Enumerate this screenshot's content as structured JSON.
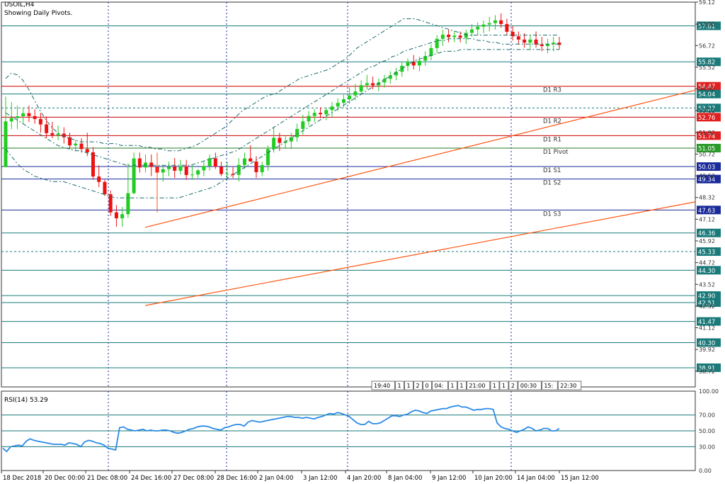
{
  "header": {
    "symbol": "USOIL,H4",
    "subtitle": "Showing Daily Pivots."
  },
  "colors": {
    "bull": "#22cc22",
    "bear": "#ee1111",
    "grid": "#1a2a9a",
    "teal": "#1a7a7a",
    "pivot_red": "#cc0000",
    "channel": "#ff5511",
    "rsi": "#2a8ae6",
    "bb": "#1a6a6a"
  },
  "chart_data": [
    {
      "type": "candlestick",
      "title": "USOIL,H4",
      "subtitle": "Showing Daily Pivots.",
      "ylim": [
        37.85,
        59.12
      ],
      "price_scale_ticks": [
        59.12,
        57.9,
        56.72,
        55.52,
        54.32,
        53.12,
        51.92,
        50.72,
        49.52,
        48.32,
        47.12,
        45.92,
        44.72,
        43.52,
        42.32,
        41.12,
        39.92,
        38.72
      ],
      "time_labels": [
        "18 Dec 2018",
        "20 Dec 00:00",
        "21 Dec 08:00",
        "24 Dec 16:00",
        "27 Dec 08:00",
        "28 Dec 16:00",
        "2 Jan 04:00",
        "3 Jan 12:00",
        "4 Jan 20:00",
        "8 Jan 04:00",
        "9 Jan 12:00",
        "10 Jan 20:00",
        "14 Jan 04:00",
        "15 Jan 12:00"
      ],
      "horizontal_levels": [
        {
          "value": 57.81,
          "label": "57.81",
          "kind": "level"
        },
        {
          "value": 55.82,
          "label": "55.82",
          "kind": "level"
        },
        {
          "value": 54.47,
          "label": "54.47",
          "kind": "pivot_red",
          "name": "D1 R3"
        },
        {
          "value": 54.04,
          "label": "54.04",
          "kind": "level"
        },
        {
          "value": 53.27,
          "label": "53.27",
          "kind": "dashed"
        },
        {
          "value": 52.76,
          "label": "52.76",
          "kind": "pivot_red",
          "name": "D1 R2"
        },
        {
          "value": 51.74,
          "label": "51.74",
          "kind": "pivot_red",
          "name": "D1 R1"
        },
        {
          "value": 51.05,
          "label": "51.05",
          "kind": "pivot_green",
          "name": "D1 Pivot"
        },
        {
          "value": 50.03,
          "label": "50.03",
          "kind": "pivot_blue",
          "name": "D1 S1"
        },
        {
          "value": 49.34,
          "label": "49.34",
          "kind": "pivot_blue",
          "name": "D1 S2"
        },
        {
          "value": 47.63,
          "label": "47.63",
          "kind": "pivot_blue",
          "name": "D1 S3"
        },
        {
          "value": 46.36,
          "label": "46.36",
          "kind": "level"
        },
        {
          "value": 45.33,
          "label": "45.33",
          "kind": "dashed"
        },
        {
          "value": 44.3,
          "label": "44.30",
          "kind": "level"
        },
        {
          "value": 42.9,
          "label": "42.90",
          "kind": "level"
        },
        {
          "value": 42.51,
          "label": "42.51",
          "kind": "level"
        },
        {
          "value": 41.47,
          "label": "41.47",
          "kind": "level"
        },
        {
          "value": 40.3,
          "label": "40.30",
          "kind": "level"
        },
        {
          "value": 38.91,
          "label": "38.91",
          "kind": "level"
        }
      ],
      "channel_lines": [
        {
          "name": "upper",
          "from": [
            33,
            47.4
          ],
          "to": [
            150,
            56.8
          ]
        },
        {
          "name": "lower",
          "from": [
            33,
            42.9
          ],
          "to": [
            150,
            50.0
          ]
        }
      ],
      "candles": [
        [
          50,
          53.9,
          50,
          52.53
        ],
        [
          52.53,
          53.6,
          52.1,
          52.71
        ],
        [
          52.71,
          53.4,
          52.1,
          52.81
        ],
        [
          52.81,
          53.3,
          52.4,
          52.98
        ],
        [
          52.98,
          53.4,
          52.5,
          52.82
        ],
        [
          52.82,
          53.2,
          52.4,
          52.66
        ],
        [
          52.66,
          53,
          51.9,
          52.36
        ],
        [
          52.36,
          52.8,
          51.6,
          51.88
        ],
        [
          51.88,
          52.5,
          51.6,
          51.77
        ],
        [
          51.77,
          52.3,
          51.5,
          51.85
        ],
        [
          51.85,
          52.2,
          51.3,
          51.65
        ],
        [
          51.65,
          51.9,
          51.0,
          51.2
        ],
        [
          51.2,
          51.5,
          50.9,
          51.3
        ],
        [
          51.3,
          51.6,
          50.8,
          51.0
        ],
        [
          51.0,
          51.9,
          50.6,
          50.82
        ],
        [
          50.82,
          51.1,
          49.3,
          49.48
        ],
        [
          49.48,
          50.1,
          48.9,
          49.18
        ],
        [
          49.18,
          49.3,
          48.4,
          48.5
        ],
        [
          48.5,
          48.7,
          47.3,
          47.5
        ],
        [
          47.5,
          47.9,
          46.7,
          47.17
        ],
        [
          47.17,
          47.8,
          46.7,
          47.4
        ],
        [
          47.4,
          50.2,
          47.2,
          48.56
        ],
        [
          48.56,
          50.8,
          48.5,
          50.48
        ],
        [
          50.48,
          50.8,
          49.7,
          49.98
        ],
        [
          49.98,
          50.7,
          49.7,
          50.25
        ],
        [
          50.25,
          50.7,
          49.5,
          50.01
        ],
        [
          50.01,
          50.6,
          49.2,
          49.7
        ],
        [
          49.7,
          50.1,
          49.2,
          49.89
        ],
        [
          49.89,
          50.3,
          49.5,
          50.02
        ],
        [
          50.02,
          50.5,
          49.4,
          49.8
        ],
        [
          49.8,
          50.4,
          49.6,
          50.05
        ],
        [
          50.05,
          50.4,
          49.3,
          49.56
        ],
        [
          49.56,
          50.1,
          49.3,
          49.59
        ],
        [
          49.59,
          49.9,
          49.4,
          49.82
        ],
        [
          49.82,
          50.3,
          49.5,
          50.06
        ],
        [
          50.06,
          50.7,
          49.8,
          50.49
        ],
        [
          50.49,
          50.8,
          49.9,
          50.02
        ],
        [
          50.02,
          50.3,
          49.5,
          49.62
        ],
        [
          49.62,
          50.3,
          49.3,
          49.63
        ],
        [
          49.63,
          50.0,
          49.4,
          49.57
        ],
        [
          49.57,
          50.5,
          49.2,
          50.12
        ],
        [
          50.12,
          50.8,
          49.9,
          50.48
        ],
        [
          50.48,
          51.2,
          50.3,
          50.31
        ],
        [
          50.31,
          50.6,
          49.4,
          49.72
        ],
        [
          49.72,
          50.3,
          49.5,
          50.11
        ],
        [
          50.11,
          51.2,
          49.8,
          51.0
        ],
        [
          51.0,
          52.2,
          50.8,
          51.62
        ],
        [
          51.62,
          51.9,
          50.9,
          51.34
        ],
        [
          51.34,
          51.7,
          51.0,
          51.42
        ],
        [
          51.42,
          51.9,
          51.0,
          51.65
        ],
        [
          51.65,
          52.4,
          51.4,
          52.11
        ],
        [
          52.11,
          52.9,
          51.8,
          52.53
        ],
        [
          52.53,
          53.1,
          52.3,
          52.83
        ],
        [
          52.83,
          53.2,
          52.5,
          53.0
        ],
        [
          53.0,
          53.3,
          52.7,
          52.92
        ],
        [
          52.92,
          53.3,
          52.6,
          53.15
        ],
        [
          53.15,
          53.6,
          52.8,
          53.35
        ],
        [
          53.35,
          53.8,
          53.1,
          53.55
        ],
        [
          53.55,
          54.0,
          53.3,
          53.75
        ],
        [
          53.75,
          54.4,
          53.5,
          53.96
        ],
        [
          53.96,
          54.6,
          53.7,
          54.18
        ],
        [
          54.18,
          54.8,
          54.0,
          54.53
        ],
        [
          54.53,
          55.1,
          54.3,
          54.64
        ],
        [
          54.64,
          55.0,
          54.3,
          54.52
        ],
        [
          54.52,
          54.9,
          54.2,
          54.68
        ],
        [
          54.68,
          55.1,
          54.4,
          54.88
        ],
        [
          54.88,
          55.3,
          54.6,
          55.07
        ],
        [
          55.07,
          55.5,
          54.8,
          55.27
        ],
        [
          55.27,
          55.8,
          55.0,
          55.6
        ],
        [
          55.6,
          56.0,
          55.3,
          55.82
        ],
        [
          55.82,
          56.2,
          55.4,
          55.62
        ],
        [
          55.62,
          56.1,
          55.3,
          55.88
        ],
        [
          55.88,
          56.4,
          55.6,
          56.14
        ],
        [
          56.14,
          56.8,
          55.9,
          56.58
        ],
        [
          56.58,
          57.3,
          56.3,
          57.09
        ],
        [
          57.09,
          57.6,
          56.7,
          57.32
        ],
        [
          57.32,
          57.6,
          56.9,
          57.18
        ],
        [
          57.18,
          57.5,
          56.9,
          57.27
        ],
        [
          57.27,
          57.5,
          56.9,
          57.15
        ],
        [
          57.15,
          57.6,
          56.8,
          57.42
        ],
        [
          57.42,
          57.9,
          57.2,
          57.61
        ],
        [
          57.61,
          58.0,
          57.3,
          57.76
        ],
        [
          57.76,
          58.1,
          57.4,
          57.88
        ],
        [
          57.88,
          58.3,
          57.5,
          57.96
        ],
        [
          57.96,
          58.4,
          57.6,
          58.11
        ],
        [
          58.11,
          58.5,
          57.7,
          57.91
        ],
        [
          57.91,
          58.2,
          57.3,
          57.48
        ],
        [
          57.48,
          57.8,
          57.0,
          57.23
        ],
        [
          57.23,
          57.5,
          56.8,
          57.05
        ],
        [
          57.05,
          57.4,
          56.6,
          56.88
        ],
        [
          56.88,
          57.3,
          56.5,
          57.05
        ],
        [
          57.05,
          57.5,
          56.6,
          56.78
        ],
        [
          56.78,
          57.2,
          56.4,
          56.69
        ],
        [
          56.69,
          57.1,
          56.3,
          56.8
        ],
        [
          56.8,
          57.2,
          56.4,
          56.88
        ],
        [
          56.88,
          57.2,
          56.5,
          56.76
        ]
      ],
      "bollinger_bands": {
        "upper": [
          54.9,
          55.2,
          55.1,
          54.8,
          54.3,
          53.7,
          53.1,
          52.6,
          52.2,
          51.9,
          51.7,
          51.6,
          51.5,
          51.4,
          51.4,
          51.4,
          51.4,
          51.3,
          51.3,
          51.3,
          51.2,
          51.2,
          51.2,
          51.2,
          51.1,
          51.1,
          51.0,
          51.0,
          50.9,
          50.9,
          50.9,
          51.0,
          51.1,
          51.2,
          51.4,
          51.6,
          51.8,
          52.0,
          52.2,
          52.5,
          52.8,
          53.1,
          53.3,
          53.5,
          53.7,
          53.9,
          54.0,
          54.1,
          54.3,
          54.5,
          54.7,
          54.9,
          55.0,
          55.1,
          55.2,
          55.3,
          55.4,
          55.6,
          55.8,
          56.0,
          56.3,
          56.6,
          56.8,
          57.0,
          57.2,
          57.4,
          57.6,
          57.8,
          58.0,
          58.2,
          58.2,
          58.2,
          58.1,
          58.0,
          57.9,
          57.8,
          57.7,
          57.6,
          57.5,
          57.4,
          57.3,
          57.3,
          57.3,
          57.3,
          57.3,
          57.3,
          57.3,
          57.3,
          57.3,
          57.3,
          57.3,
          57.3,
          57.3,
          57.3,
          57.3,
          57.3,
          57.3
        ],
        "middle": [
          53.0,
          52.8,
          52.6,
          52.4,
          52.2,
          52.0,
          51.8,
          51.6,
          51.4,
          51.2,
          51.1,
          51.0,
          50.9,
          50.9,
          50.8,
          50.7,
          50.6,
          50.5,
          50.4,
          50.3,
          50.2,
          50.1,
          50.1,
          50.1,
          50.1,
          50.1,
          50.1,
          50.1,
          50.1,
          50.1,
          50.1,
          50.1,
          50.1,
          50.2,
          50.3,
          50.4,
          50.5,
          50.6,
          50.7,
          50.8,
          50.9,
          51.1,
          51.3,
          51.5,
          51.7,
          51.9,
          52.1,
          52.3,
          52.5,
          52.7,
          52.9,
          53.1,
          53.3,
          53.5,
          53.7,
          53.9,
          54.1,
          54.3,
          54.5,
          54.7,
          54.9,
          55.1,
          55.3,
          55.5,
          55.6,
          55.8,
          55.9,
          56.1,
          56.2,
          56.4,
          56.5,
          56.6,
          56.7,
          56.8,
          56.9,
          57.0,
          57.0,
          57.1,
          57.1,
          57.1,
          57.1,
          57.1,
          57.0,
          57.0,
          56.9,
          56.9,
          56.8,
          56.8,
          56.8,
          56.8,
          56.8,
          56.8,
          56.8,
          56.8,
          56.8,
          56.8,
          56.8
        ],
        "lower": [
          51.0,
          50.6,
          50.2,
          49.9,
          49.7,
          49.5,
          49.4,
          49.3,
          49.2,
          49.2,
          49.2,
          49.1,
          49.0,
          48.9,
          48.8,
          48.7,
          48.6,
          48.5,
          48.4,
          48.3,
          48.3,
          48.3,
          48.3,
          48.3,
          48.3,
          48.3,
          48.3,
          48.3,
          48.3,
          48.3,
          48.3,
          48.4,
          48.5,
          48.6,
          48.7,
          48.8,
          48.9,
          49.1,
          49.3,
          49.5,
          49.7,
          49.9,
          50.1,
          50.3,
          50.5,
          50.7,
          50.9,
          51.1,
          51.3,
          51.5,
          51.7,
          51.9,
          52.1,
          52.3,
          52.5,
          52.7,
          52.9,
          53.1,
          53.3,
          53.5,
          53.7,
          53.9,
          54.1,
          54.3,
          54.5,
          54.7,
          54.9,
          55.1,
          55.3,
          55.5,
          55.7,
          55.9,
          56.0,
          56.1,
          56.2,
          56.3,
          56.4,
          56.4,
          56.4,
          56.5,
          56.5,
          56.5,
          56.5,
          56.5,
          56.5,
          56.5,
          56.5,
          56.5,
          56.5,
          56.5,
          56.5,
          56.5,
          56.5,
          56.5,
          56.5,
          56.5,
          56.5
        ]
      },
      "tags": [
        "19:40",
        "1",
        "1",
        "2",
        "0",
        "04:",
        "1",
        "1",
        "21:00",
        "1",
        "1",
        "2",
        "00:30",
        "15:",
        "22:30"
      ]
    },
    {
      "type": "line",
      "title": "RSI(14) 53.29",
      "ylim": [
        0,
        100
      ],
      "yticks": [
        "100.00",
        "70.00",
        "50.00",
        "30.00",
        "0.00"
      ],
      "levels": [
        70,
        50,
        30
      ],
      "series": [
        {
          "name": "RSI(14)",
          "values": [
            28,
            24,
            30,
            31,
            32,
            31,
            37,
            40,
            38,
            37,
            36,
            35,
            34,
            33,
            33,
            33,
            32,
            35,
            34,
            33,
            30,
            36,
            38,
            37,
            35,
            34,
            32,
            28,
            27,
            26,
            54,
            55,
            52,
            51,
            50,
            51,
            52,
            50,
            51,
            50,
            50,
            51,
            51,
            50,
            48,
            47,
            48,
            50,
            52,
            53,
            55,
            56,
            56,
            55,
            53,
            52,
            51,
            54,
            55,
            57,
            58,
            58,
            56,
            61,
            63,
            62,
            61,
            62,
            63,
            64,
            65,
            66,
            67,
            68,
            68,
            67,
            67,
            66,
            67,
            66,
            65,
            67,
            68,
            70,
            72,
            71,
            73,
            72,
            70,
            68,
            64,
            60,
            58,
            58,
            62,
            59,
            59,
            60,
            63,
            66,
            69,
            69,
            68,
            70,
            71,
            74,
            76,
            75,
            73,
            72,
            75,
            76,
            77,
            78,
            78,
            80,
            81,
            82,
            80,
            80,
            78,
            76,
            77,
            77,
            78,
            78,
            77,
            60,
            55,
            53,
            52,
            50,
            48,
            50,
            52,
            55,
            53,
            50,
            51,
            53,
            53,
            50,
            50,
            53
          ]
        }
      ]
    }
  ]
}
